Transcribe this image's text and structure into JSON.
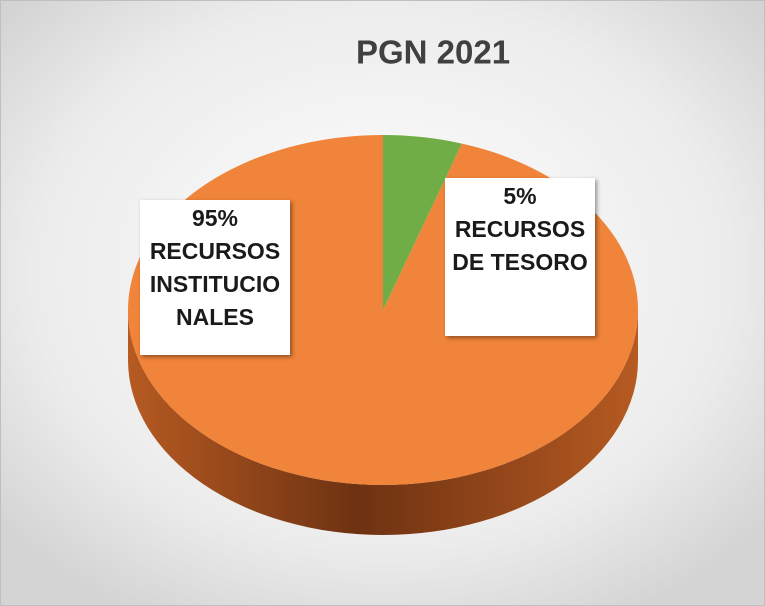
{
  "chart_data": {
    "type": "pie",
    "title": "PGN 2021",
    "categories": [
      "RECURSOS INSTITUCIONALES",
      "RECURSOS DE TESORO"
    ],
    "values": [
      95,
      5
    ],
    "value_labels": [
      "95%",
      "5%"
    ],
    "colors": [
      "#f0843a",
      "#70ad47"
    ]
  }
}
